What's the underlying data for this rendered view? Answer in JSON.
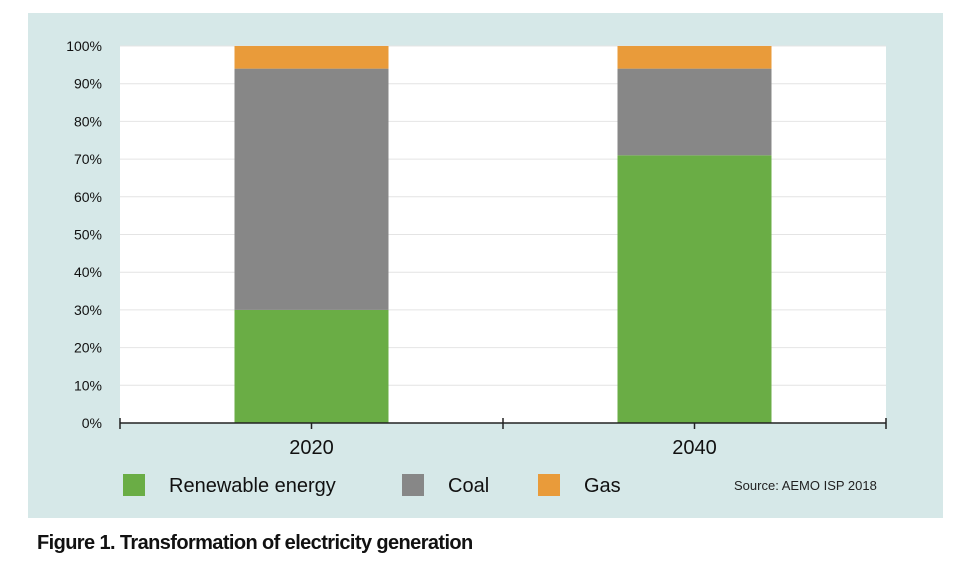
{
  "figure": {
    "caption": "Figure 1. Transformation of electricity generation",
    "source": "Source: AEMO ISP 2018"
  },
  "colors": {
    "panel": "#d6e8e8",
    "renewable": "#6aad45",
    "coal": "#878787",
    "gas": "#e99b3a"
  },
  "chart_data": {
    "type": "bar",
    "stacked": true,
    "title": "",
    "xlabel": "",
    "ylabel": "",
    "categories": [
      "2020",
      "2040"
    ],
    "series": [
      {
        "name": "Renewable energy",
        "values": [
          30,
          71
        ],
        "color": "#6aad45"
      },
      {
        "name": "Coal",
        "values": [
          64,
          23
        ],
        "color": "#878787"
      },
      {
        "name": "Gas",
        "values": [
          6,
          6
        ],
        "color": "#e99b3a"
      }
    ],
    "ylim": [
      0,
      100
    ],
    "yticks": [
      "0%",
      "10%",
      "20%",
      "30%",
      "40%",
      "50%",
      "60%",
      "70%",
      "80%",
      "90%",
      "100%"
    ],
    "legend_position": "bottom"
  }
}
